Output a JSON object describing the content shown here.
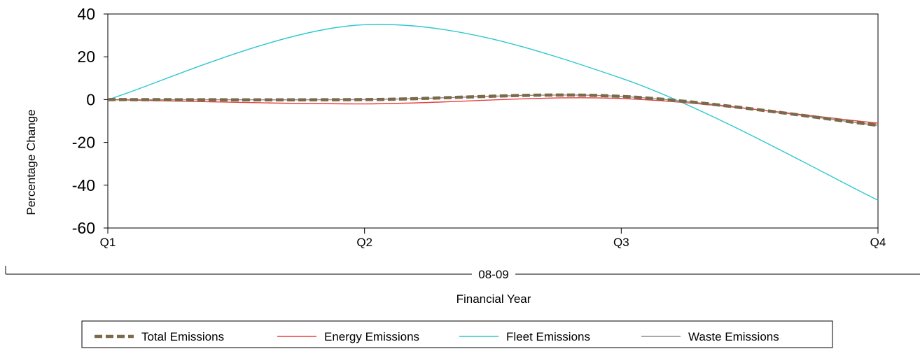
{
  "chart_data": {
    "type": "line",
    "title": "",
    "ylabel": "Percentage Change",
    "xlabel": "Financial Year",
    "group_label": "08-09",
    "categories": [
      "Q1",
      "Q2",
      "Q3",
      "Q4"
    ],
    "ylim": [
      -60,
      40
    ],
    "yticks": [
      40,
      20,
      0,
      -20,
      -40,
      -60
    ],
    "grid": false,
    "legend_position": "bottom",
    "series": [
      {
        "name": "Total Emissions",
        "color": "#7a6a4a",
        "dash": "dashed",
        "values": [
          0,
          0,
          1.5,
          -12
        ]
      },
      {
        "name": "Energy Emissions",
        "color": "#e8403c",
        "dash": "solid",
        "values": [
          0,
          -2,
          0.5,
          -11
        ]
      },
      {
        "name": "Fleet Emissions",
        "color": "#2ec8cf",
        "dash": "solid",
        "values": [
          0,
          35,
          10,
          -47
        ]
      },
      {
        "name": "Waste Emissions",
        "color": "#8c8c8c",
        "dash": "solid",
        "values": [
          0,
          0,
          1.5,
          -12
        ]
      }
    ]
  }
}
